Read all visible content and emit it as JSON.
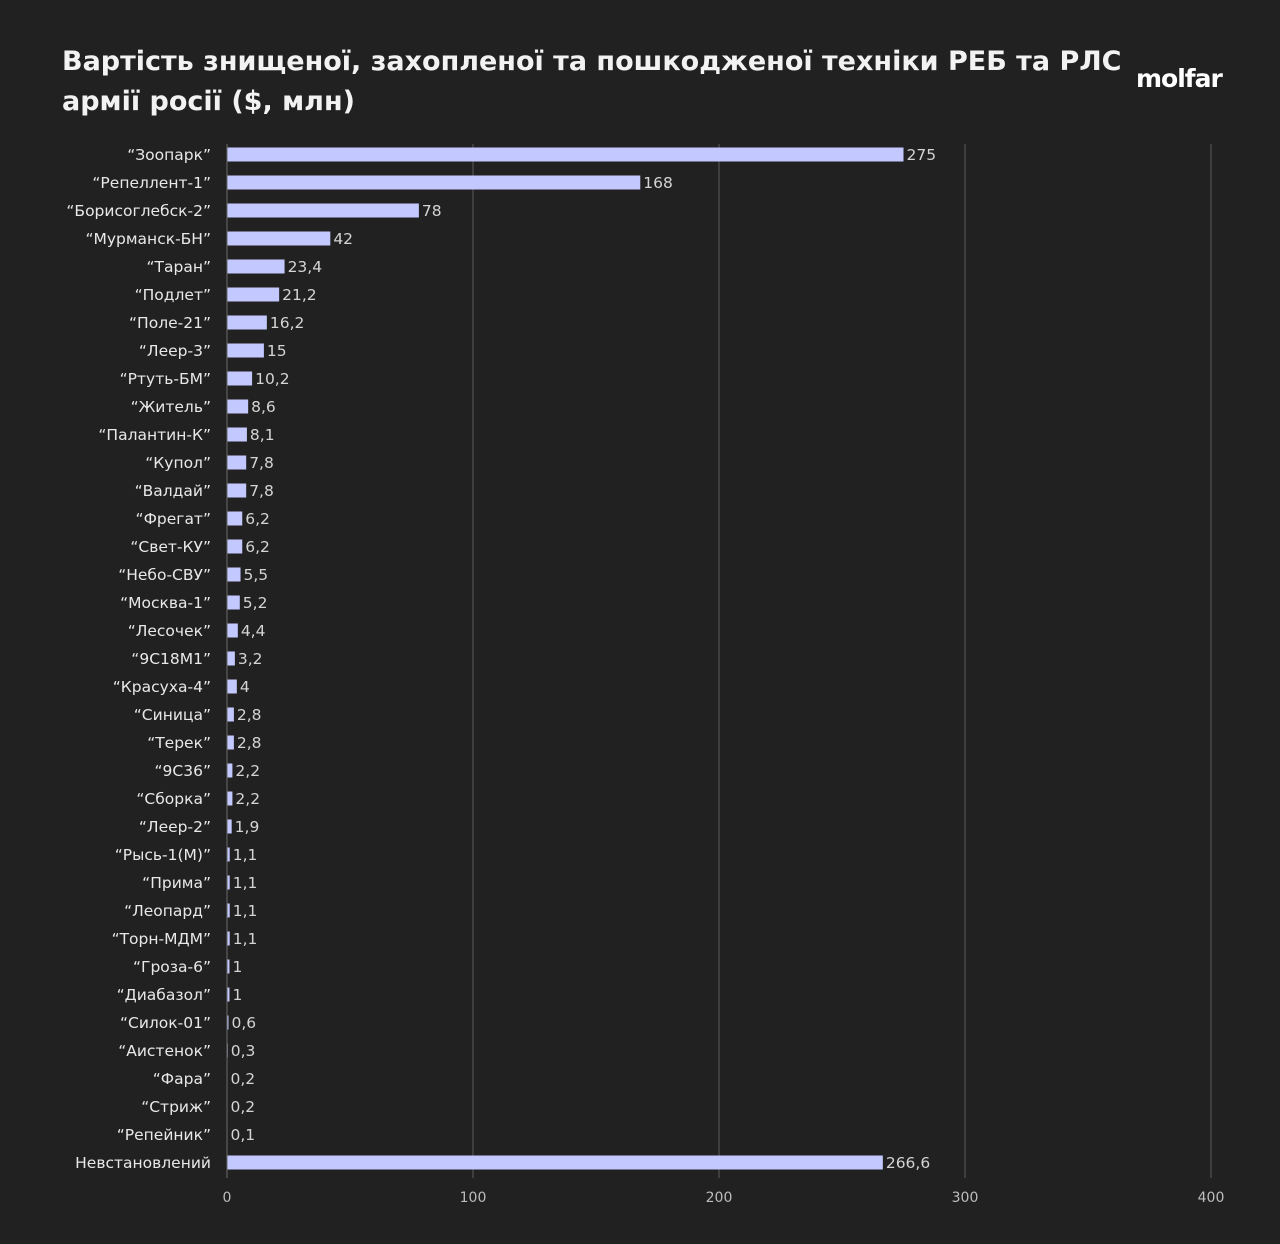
{
  "header": {
    "title": "Вартість знищеної, захопленої та пошкодженої техніки РЕБ та РЛС армії росії ($, млн)",
    "logo": "molfar"
  },
  "colors": {
    "background": "#212121",
    "bar": "#c3c8ff",
    "grid": "#5a5a5a"
  },
  "chart_data": {
    "type": "bar",
    "orientation": "horizontal",
    "title": "Вартість знищеної, захопленої та пошкодженої техніки РЕБ та РЛС армії росії ($, млн)",
    "xlabel": "",
    "ylabel": "",
    "xlim": [
      0,
      400
    ],
    "ticks": [
      0,
      100,
      200,
      300,
      400
    ],
    "grid": true,
    "categories": [
      "“Зоопарк”",
      "“Репеллент-1”",
      "“Борисоглебск-2”",
      "“Мурманск-БН”",
      "“Таран”",
      "“Подлет”",
      "“Поле-21”",
      "“Леер-3”",
      "“Ртуть-БМ”",
      "“Житель”",
      "“Палантин-К”",
      "“Купол”",
      "“Валдай”",
      "“Фрегат”",
      "“Свет-КУ”",
      "“Небо-СВУ”",
      "“Москва-1”",
      "“Лесочек”",
      "“9С18М1”",
      "“Красуха-4”",
      "“Синица”",
      "“Терек”",
      "“9С36”",
      "“Сборка”",
      "“Леер-2”",
      "“Рысь-1(М)”",
      "“Прима”",
      "“Леопард”",
      "“Торн-МДМ”",
      "“Гроза-6”",
      "“Диабазол”",
      "“Силок-01”",
      "“Аистенок”",
      "“Фара”",
      "“Стриж”",
      "“Репейник”",
      "Невстановлений"
    ],
    "values": [
      275,
      168,
      78,
      42,
      23.4,
      21.2,
      16.2,
      15,
      10.2,
      8.6,
      8.1,
      7.8,
      7.8,
      6.2,
      6.2,
      5.5,
      5.2,
      4.4,
      3.2,
      4,
      2.8,
      2.8,
      2.2,
      2.2,
      1.9,
      1.1,
      1.1,
      1.1,
      1.1,
      1,
      1,
      0.6,
      0.3,
      0.2,
      0.2,
      0.1,
      266.6
    ],
    "value_labels": [
      "275",
      "168",
      "78",
      "42",
      "23,4",
      "21,2",
      "16,2",
      "15",
      "10,2",
      "8,6",
      "8,1",
      "7,8",
      "7,8",
      "6,2",
      "6,2",
      "5,5",
      "5,2",
      "4,4",
      "3,2",
      "4",
      "2,8",
      "2,8",
      "2,2",
      "2,2",
      "1,9",
      "1,1",
      "1,1",
      "1,1",
      "1,1",
      "1",
      "1",
      "0,6",
      "0,3",
      "0,2",
      "0,2",
      "0,1",
      "266,6"
    ]
  }
}
